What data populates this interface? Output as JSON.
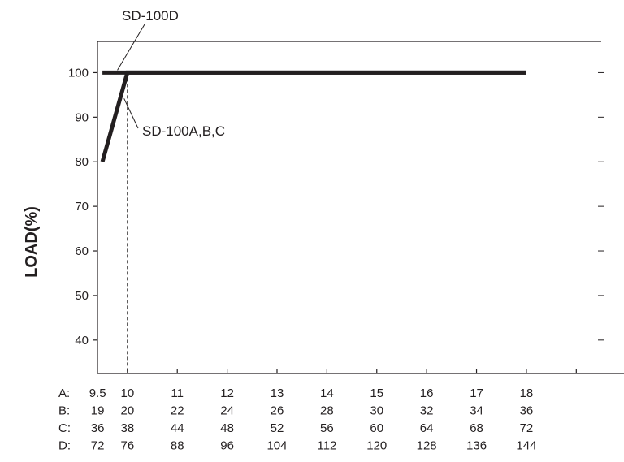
{
  "chart_data": {
    "type": "line",
    "title": "",
    "xlabel": "",
    "ylabel": "LOAD(%)",
    "ylim": [
      32.5,
      107
    ],
    "y_ticks": [
      40,
      50,
      60,
      70,
      80,
      90,
      100
    ],
    "x_scale": "A",
    "xlim": [
      9.4,
      19.5
    ],
    "x_tick_columns": [
      9.5,
      10,
      11,
      12,
      13,
      14,
      15,
      16,
      17,
      18
    ],
    "x_label_rows": [
      {
        "prefix": "A:",
        "values": [
          "9.5",
          "10",
          "11",
          "12",
          "13",
          "14",
          "15",
          "16",
          "17",
          "18"
        ]
      },
      {
        "prefix": "B:",
        "values": [
          "19",
          "20",
          "22",
          "24",
          "26",
          "28",
          "30",
          "32",
          "34",
          "36"
        ]
      },
      {
        "prefix": "C:",
        "values": [
          "36",
          "38",
          "44",
          "48",
          "52",
          "56",
          "60",
          "64",
          "68",
          "72"
        ]
      },
      {
        "prefix": "D:",
        "values": [
          "72",
          "76",
          "88",
          "96",
          "104",
          "112",
          "120",
          "128",
          "136",
          "144"
        ]
      }
    ],
    "reference_line_x": 10,
    "series": [
      {
        "name": "SD-100D",
        "points": [
          [
            9.5,
            100
          ],
          [
            18,
            100
          ]
        ]
      },
      {
        "name": "SD-100A,B,C",
        "points": [
          [
            9.5,
            80
          ],
          [
            10,
            100
          ],
          [
            18,
            100
          ]
        ]
      }
    ],
    "annotations": [
      {
        "text": "SD-100D",
        "target": [
          9.8,
          100
        ]
      },
      {
        "text": "SD-100A,B,C",
        "target": [
          9.9,
          92
        ]
      }
    ],
    "grid": false,
    "line_color": "#231f20"
  }
}
